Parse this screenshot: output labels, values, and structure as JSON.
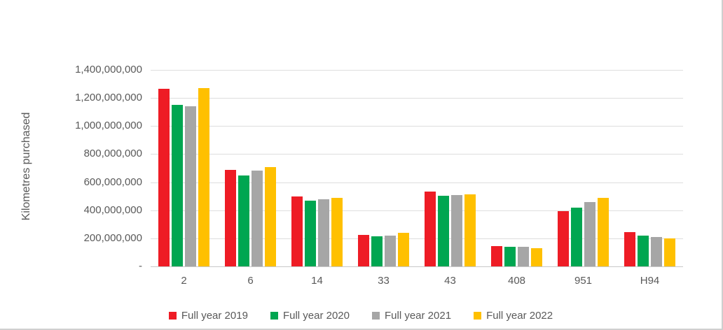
{
  "chart_data": {
    "type": "bar",
    "title": "",
    "categories": [
      "2",
      "6",
      "14",
      "33",
      "43",
      "408",
      "951",
      "H94"
    ],
    "series": [
      {
        "name": "Full year 2019",
        "color": "#ee1c25",
        "values": [
          1265000000,
          690000000,
          500000000,
          225000000,
          535000000,
          145000000,
          395000000,
          245000000
        ]
      },
      {
        "name": "Full year 2020",
        "color": "#00a651",
        "values": [
          1150000000,
          650000000,
          470000000,
          215000000,
          505000000,
          140000000,
          420000000,
          220000000
        ]
      },
      {
        "name": "Full year 2021",
        "color": "#a6a6a6",
        "values": [
          1140000000,
          685000000,
          480000000,
          220000000,
          510000000,
          138000000,
          460000000,
          210000000
        ]
      },
      {
        "name": "Full year 2022",
        "color": "#ffc000",
        "values": [
          1270000000,
          710000000,
          490000000,
          238000000,
          515000000,
          130000000,
          490000000,
          200000000
        ]
      }
    ],
    "xlabel": "",
    "ylabel": "Kilometres purchased",
    "ylim": [
      0,
      1400000000
    ],
    "ytick_step": 200000000,
    "grid": true,
    "legend_position": "bottom"
  },
  "y_axis": {
    "title": "Kilometres purchased",
    "tick_labels": [
      "1,400,000,000",
      "1,200,000,000",
      "1,000,000,000",
      "800,000,000",
      "600,000,000",
      "400,000,000",
      "200,000,000",
      "-"
    ]
  },
  "colors": {
    "background": "#ffffff",
    "gridline": "#dedede",
    "axis_line": "#c8c8c8",
    "text": "#595959",
    "frame_border": "#cfcfcf"
  }
}
